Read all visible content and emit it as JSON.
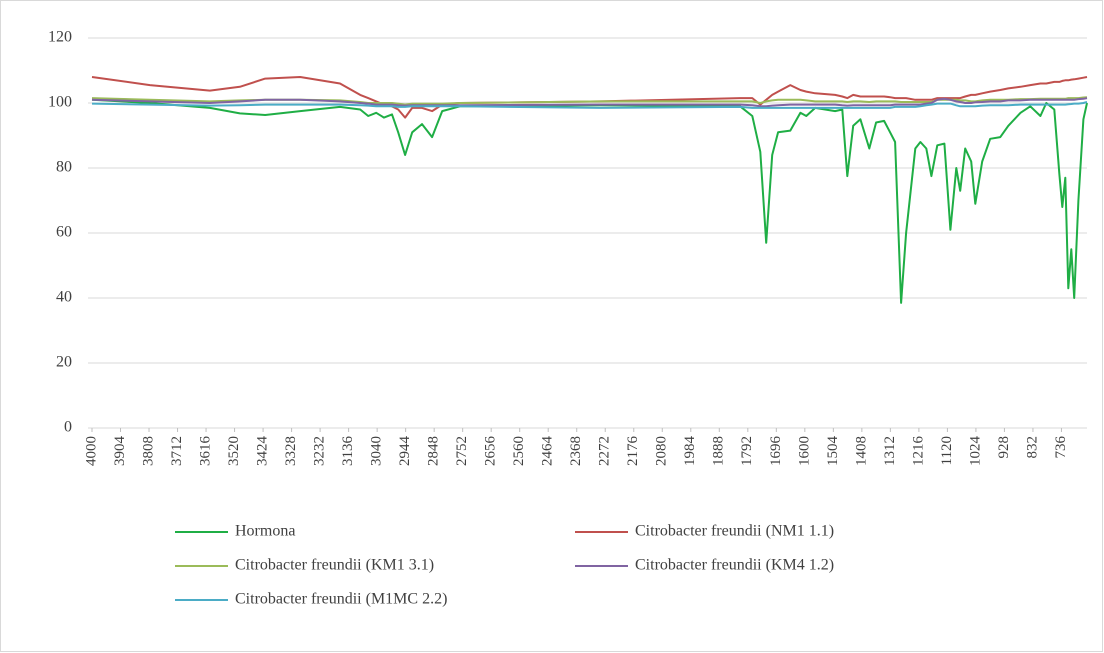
{
  "chart_data": {
    "type": "line",
    "x": [
      4000,
      3805,
      3603,
      3502,
      3417,
      3299,
      3165,
      3097,
      3070,
      3043,
      3017,
      2990,
      2969,
      2946,
      2922,
      2889,
      2855,
      2821,
      2761,
      2289,
      1818,
      1777,
      1750,
      1730,
      1710,
      1690,
      1649,
      1615,
      1595,
      1565,
      1498,
      1474,
      1457,
      1437,
      1413,
      1383,
      1360,
      1333,
      1313,
      1296,
      1276,
      1259,
      1228,
      1211,
      1191,
      1174,
      1154,
      1130,
      1110,
      1090,
      1077,
      1060,
      1040,
      1026,
      1003,
      976,
      942,
      915,
      874,
      841,
      807,
      787,
      760,
      743,
      733,
      723,
      713,
      703,
      693,
      679,
      662,
      650
    ],
    "series": [
      {
        "name": "Hormona",
        "color": "#1fae45",
        "values": [
          101,
          100,
          98.5,
          96.8,
          96.3,
          97.5,
          98.8,
          98,
          96,
          97,
          95.5,
          96.5,
          91,
          84,
          91,
          93.5,
          89.5,
          97.5,
          99,
          99.3,
          99,
          96,
          85,
          57,
          84,
          91,
          91.5,
          97,
          96,
          98.5,
          97.5,
          98,
          77.5,
          93,
          95,
          86,
          94,
          94.5,
          91,
          88,
          38.5,
          60,
          86,
          88,
          86,
          77.5,
          87,
          87.5,
          61,
          80,
          73,
          86,
          82,
          69,
          82,
          89,
          89.5,
          93,
          97,
          99,
          96,
          100,
          98,
          78,
          68,
          77,
          43,
          55,
          40,
          70,
          95,
          100
        ]
      },
      {
        "name": "Citrobacter freundii (NM1 1.1)",
        "color": "#c0504d",
        "values": [
          108,
          105.5,
          103.8,
          105,
          107.5,
          108,
          106,
          102.5,
          101.5,
          100.5,
          99.5,
          99,
          98,
          95.5,
          98.5,
          98.5,
          97.5,
          99.5,
          100,
          100.5,
          101.5,
          101.5,
          99.5,
          101,
          102.5,
          103.5,
          105.5,
          104,
          103.5,
          103,
          102.5,
          102,
          101.5,
          102.5,
          102,
          102,
          102,
          102,
          101.8,
          101.5,
          101.5,
          101.5,
          101,
          101,
          101,
          101,
          101.5,
          101.5,
          101.5,
          101.5,
          101.5,
          102,
          102.5,
          102.5,
          103,
          103.5,
          104,
          104.5,
          105,
          105.5,
          106,
          106,
          106.5,
          106.5,
          106.8,
          107,
          107,
          107.2,
          107.3,
          107.5,
          107.8,
          108
        ]
      },
      {
        "name": "Citrobacter freundii (KM1 3.1)",
        "color": "#9bbb59",
        "values": [
          101.5,
          101,
          100.5,
          100.8,
          101,
          101,
          100.8,
          100.3,
          100,
          100,
          100,
          100,
          99.8,
          99.5,
          99.8,
          99.8,
          99.8,
          99.8,
          100,
          100.5,
          100.5,
          100.5,
          100,
          100.5,
          100.8,
          101,
          101,
          101,
          100.8,
          100.5,
          100.5,
          100.5,
          100.3,
          100.5,
          100.5,
          100.3,
          100.5,
          100.5,
          100.5,
          100.5,
          100.3,
          100.3,
          100.3,
          100.3,
          100.3,
          100.3,
          101,
          101,
          101,
          101,
          100.8,
          100.8,
          100.5,
          100.5,
          100.8,
          101,
          101,
          101,
          101.2,
          101.2,
          101.3,
          101.3,
          101.3,
          101.3,
          101.3,
          101.3,
          101.5,
          101.5,
          101.5,
          101.5,
          101.7,
          101.8
        ]
      },
      {
        "name": "Citrobacter freundii (KM4 1.2)",
        "color": "#8064a2",
        "values": [
          101,
          100.5,
          100,
          100.5,
          101,
          101,
          100.5,
          100,
          99.8,
          99.5,
          99.5,
          99.5,
          99.3,
          99.2,
          99.3,
          99.3,
          99.3,
          99.3,
          99.3,
          99.5,
          99.5,
          99.3,
          99,
          99,
          99.2,
          99.3,
          99.5,
          99.5,
          99.5,
          99.5,
          99.5,
          99.3,
          99.2,
          99.3,
          99.3,
          99.3,
          99.3,
          99.3,
          99.3,
          99.5,
          99.5,
          99.5,
          99.5,
          99.5,
          99.8,
          100,
          101,
          101.3,
          101,
          100.5,
          100.3,
          100,
          100,
          100.2,
          100.3,
          100.5,
          100.5,
          100.8,
          100.8,
          101,
          101,
          101,
          101,
          101,
          101,
          101,
          101,
          101,
          101,
          101.2,
          101.3,
          101.5
        ]
      },
      {
        "name": "Citrobacter freundii (M1MC 2.2)",
        "color": "#4bacc6",
        "values": [
          99.8,
          99.5,
          99.2,
          99.3,
          99.5,
          99.5,
          99.5,
          99.3,
          99.2,
          99,
          99,
          99,
          98.8,
          98.8,
          99,
          99,
          99,
          99,
          99,
          98.5,
          98.8,
          98.5,
          98.5,
          98.5,
          98.5,
          98.5,
          98.5,
          98.5,
          98.5,
          98.5,
          98.5,
          98.5,
          98.5,
          98.5,
          98.5,
          98.5,
          98.5,
          98.5,
          98.5,
          98.8,
          98.8,
          98.8,
          98.8,
          99,
          99.3,
          99.5,
          99.8,
          99.8,
          99.8,
          99.3,
          99,
          99,
          99,
          99,
          99.2,
          99.3,
          99.3,
          99.3,
          99.5,
          99.5,
          99.5,
          99.5,
          99.5,
          99.5,
          99.5,
          99.5,
          99.6,
          99.7,
          99.8,
          99.8,
          100,
          100.3
        ]
      }
    ],
    "xlim": [
      4000,
      650
    ],
    "xticks": [
      4000,
      3904,
      3808,
      3712,
      3616,
      3520,
      3424,
      3328,
      3232,
      3136,
      3040,
      2944,
      2848,
      2752,
      2656,
      2560,
      2464,
      2368,
      2272,
      2176,
      2080,
      1984,
      1888,
      1792,
      1696,
      1600,
      1504,
      1408,
      1312,
      1216,
      1120,
      1024,
      928,
      832,
      736
    ],
    "ylim": [
      0,
      120
    ],
    "yticks": [
      0,
      20,
      40,
      60,
      80,
      100,
      120
    ],
    "grid": true
  }
}
